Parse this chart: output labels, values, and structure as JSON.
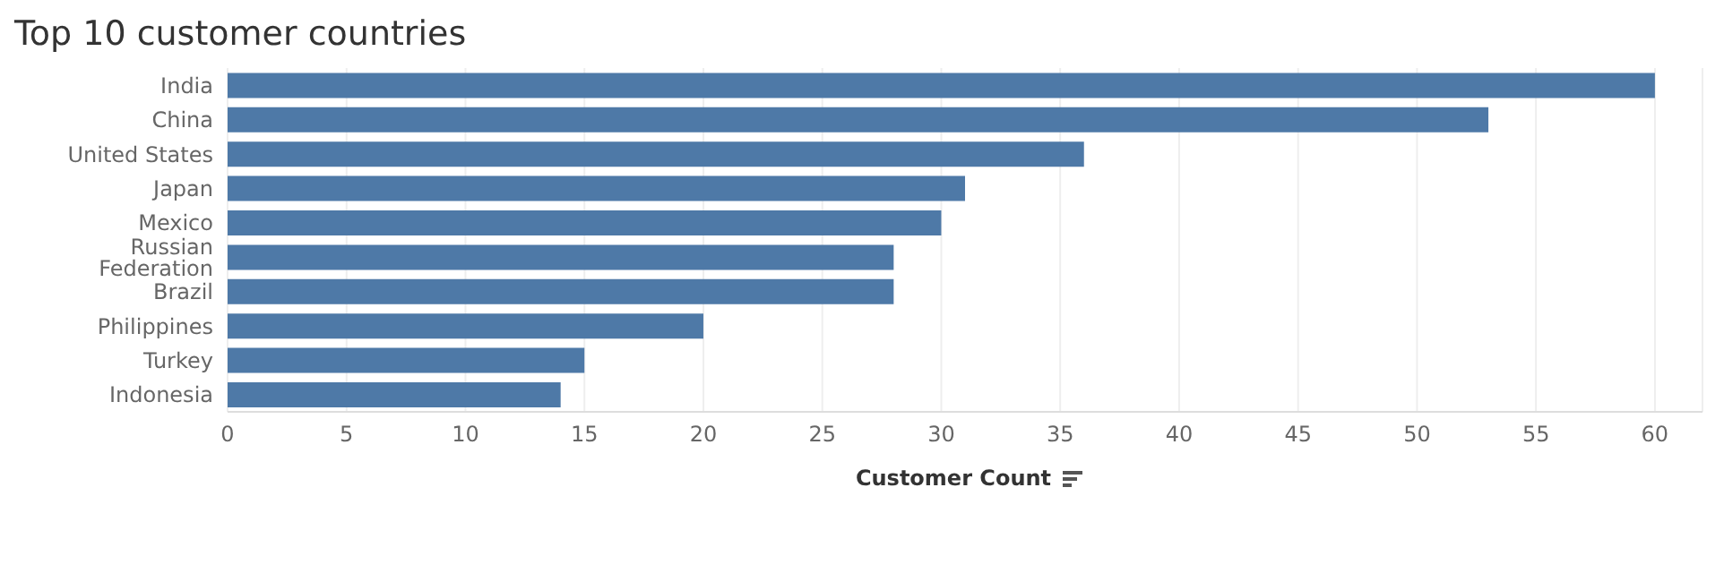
{
  "chart_data": {
    "type": "bar",
    "orientation": "horizontal",
    "title": "Top 10 customer countries",
    "xlabel": "Customer Count",
    "categories": [
      "India",
      "China",
      "United States",
      "Japan",
      "Mexico",
      "Russian Federation",
      "Brazil",
      "Philippines",
      "Turkey",
      "Indonesia"
    ],
    "values": [
      60,
      53,
      36,
      31,
      30,
      28,
      28,
      20,
      15,
      14
    ],
    "color": "#4e79a7",
    "xlim": [
      0,
      62
    ],
    "xticks": [
      0,
      5,
      10,
      15,
      20,
      25,
      30,
      35,
      40,
      45,
      50,
      55,
      60
    ],
    "grid": "x"
  }
}
